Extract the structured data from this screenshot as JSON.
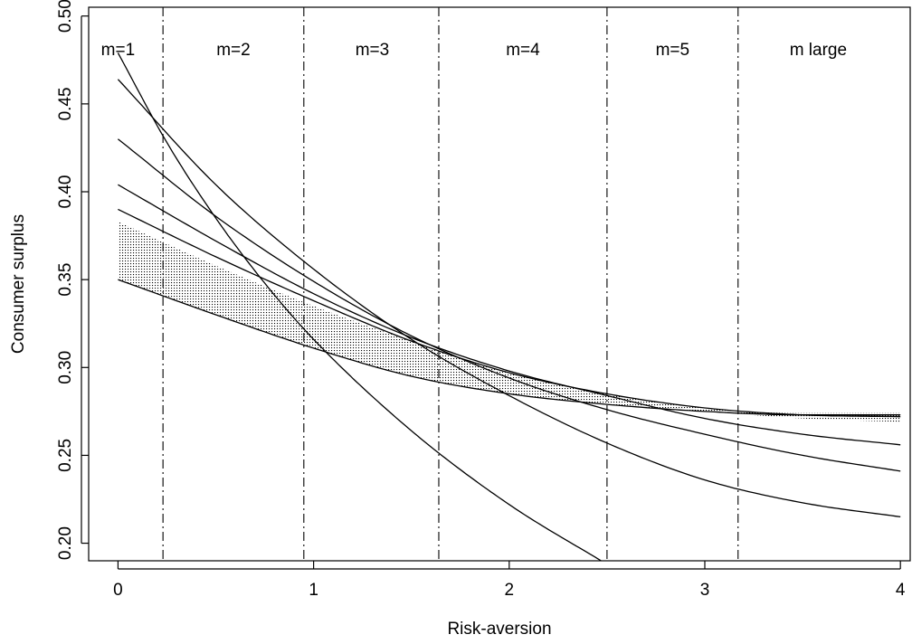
{
  "chart_data": {
    "type": "line",
    "xlabel": "Risk-aversion",
    "ylabel": "Consumer surplus",
    "xlim": [
      -0.15,
      4.05
    ],
    "ylim": [
      0.19,
      0.505
    ],
    "x_ticks": [
      0,
      1,
      2,
      3,
      4
    ],
    "x_tick_labels": [
      "0",
      "1",
      "2",
      "3",
      "4"
    ],
    "y_ticks": [
      0.2,
      0.25,
      0.3,
      0.35,
      0.4,
      0.45,
      0.5
    ],
    "y_tick_labels": [
      "0.20",
      "0.25",
      "0.30",
      "0.35",
      "0.40",
      "0.45",
      "0.50"
    ],
    "grid": false,
    "vertical_boundaries": [
      0.23,
      0.95,
      1.64,
      2.5,
      3.17
    ],
    "regions": [
      {
        "label": "m=1",
        "x": 0.0
      },
      {
        "label": "m=2",
        "x": 0.59
      },
      {
        "label": "m=3",
        "x": 1.3
      },
      {
        "label": "m=4",
        "x": 2.07
      },
      {
        "label": "m=5",
        "x": 2.835
      },
      {
        "label": "m large",
        "x": 3.58
      }
    ],
    "series": [
      {
        "x": [
          0,
          0.25,
          0.5,
          0.75,
          1,
          1.5,
          2,
          2.5
        ],
        "y": [
          0.479,
          0.428,
          0.385,
          0.348,
          0.316,
          0.264,
          0.222,
          0.188
        ]
      },
      {
        "x": [
          0,
          0.5,
          1,
          1.5,
          2,
          2.5,
          3,
          3.5,
          4
        ],
        "y": [
          0.464,
          0.404,
          0.356,
          0.316,
          0.284,
          0.257,
          0.236,
          0.223,
          0.215
        ]
      },
      {
        "x": [
          0,
          0.5,
          1,
          1.5,
          2,
          2.5,
          3,
          3.5,
          4
        ],
        "y": [
          0.43,
          0.386,
          0.349,
          0.318,
          0.294,
          0.276,
          0.262,
          0.25,
          0.241
        ]
      },
      {
        "x": [
          0,
          0.5,
          1,
          1.5,
          2,
          2.5,
          3,
          3.5,
          4
        ],
        "y": [
          0.404,
          0.372,
          0.342,
          0.317,
          0.298,
          0.284,
          0.271,
          0.262,
          0.256
        ]
      },
      {
        "x": [
          0,
          0.5,
          1,
          1.5,
          2,
          2.5,
          3,
          3.5,
          4
        ],
        "y": [
          0.39,
          0.363,
          0.338,
          0.315,
          0.297,
          0.285,
          0.277,
          0.273,
          0.272
        ]
      },
      {
        "x": [
          0,
          0.5,
          1,
          1.5,
          2,
          2.5,
          3,
          3.5,
          4
        ],
        "y": [
          0.35,
          0.33,
          0.311,
          0.295,
          0.285,
          0.279,
          0.275,
          0.273,
          0.273
        ]
      }
    ],
    "shaded_band": {
      "x": [
        0,
        0.5,
        1,
        1.5,
        2,
        2.5,
        3,
        3.5,
        4
      ],
      "lower": [
        0.35,
        0.33,
        0.311,
        0.295,
        0.285,
        0.279,
        0.275,
        0.271,
        0.269
      ],
      "upper": [
        0.383,
        0.358,
        0.335,
        0.315,
        0.297,
        0.285,
        0.277,
        0.274,
        0.274
      ]
    }
  }
}
